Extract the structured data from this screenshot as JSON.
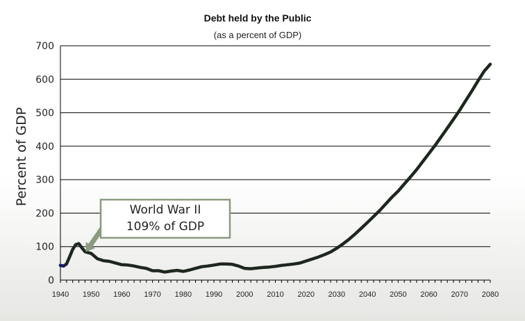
{
  "chart_data": {
    "type": "line",
    "title": "Debt held by the Public",
    "subtitle": "(as a percent of GDP)",
    "xlabel": "",
    "ylabel": "Percent of GDP",
    "xlim": [
      1940,
      2080
    ],
    "ylim": [
      0,
      700
    ],
    "xticks": [
      1940,
      1950,
      1960,
      1970,
      1980,
      1990,
      2000,
      2010,
      2020,
      2030,
      2040,
      2050,
      2060,
      2070,
      2080
    ],
    "yticks": [
      0,
      100,
      200,
      300,
      400,
      500,
      600,
      700
    ],
    "grid": "horizontal",
    "series": [
      {
        "color": "#1e271e",
        "historical_color": "#1a1a6e",
        "x": [
          1940,
          1941,
          1942,
          1943,
          1944,
          1945,
          1946,
          1947,
          1948,
          1949,
          1950,
          1952,
          1954,
          1956,
          1958,
          1960,
          1962,
          1964,
          1966,
          1968,
          1970,
          1972,
          1974,
          1976,
          1978,
          1980,
          1982,
          1984,
          1986,
          1988,
          1990,
          1992,
          1994,
          1996,
          1998,
          2000,
          2002,
          2004,
          2006,
          2008,
          2010,
          2012,
          2014,
          2016,
          2018,
          2020,
          2022,
          2024,
          2026,
          2028,
          2030,
          2032,
          2034,
          2036,
          2038,
          2040,
          2042,
          2044,
          2046,
          2048,
          2050,
          2052,
          2054,
          2056,
          2058,
          2060,
          2062,
          2064,
          2066,
          2068,
          2070,
          2072,
          2074,
          2076,
          2078,
          2080
        ],
        "values": [
          44,
          42,
          48,
          70,
          92,
          106,
          109,
          96,
          85,
          82,
          80,
          64,
          58,
          56,
          51,
          46,
          45,
          42,
          38,
          35,
          28,
          28,
          24,
          27,
          29,
          26,
          30,
          35,
          40,
          42,
          45,
          48,
          48,
          47,
          42,
          35,
          34,
          36,
          38,
          39,
          41,
          44,
          46,
          48,
          51,
          57,
          63,
          69,
          76,
          84,
          95,
          108,
          122,
          138,
          155,
          172,
          190,
          208,
          228,
          248,
          266,
          287,
          308,
          330,
          354,
          378,
          402,
          428,
          454,
          480,
          507,
          536,
          565,
          595,
          624,
          645
        ]
      }
    ],
    "annotations": [
      {
        "lines": [
          "World War II",
          "109% of GDP"
        ],
        "points_to_x": 1946,
        "points_to_y": 109
      }
    ]
  },
  "colors": {
    "series_line": "#1e271e",
    "annotation_border": "#8a9a7e",
    "arrow": "#8c9a80",
    "gridline": "#000000"
  }
}
